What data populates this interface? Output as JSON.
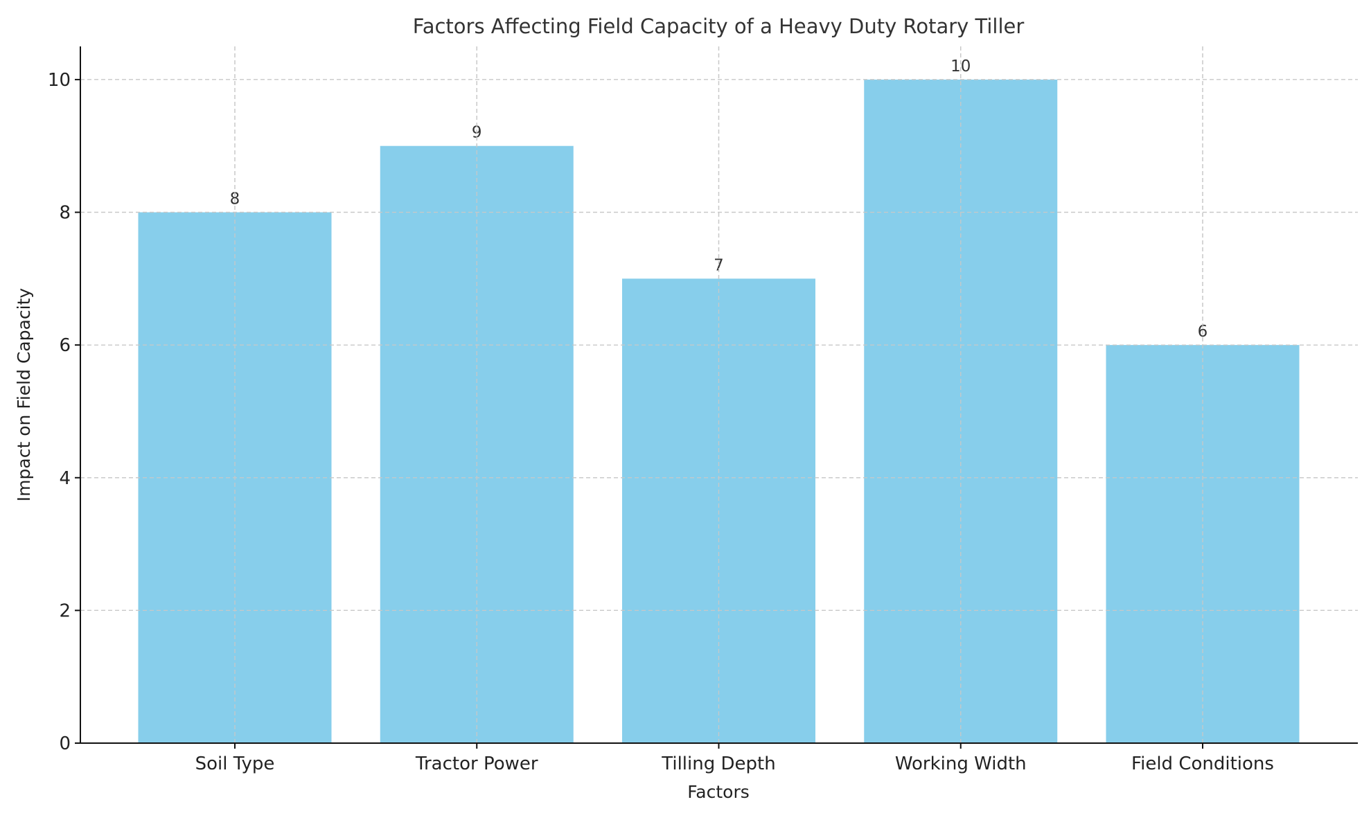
{
  "chart_data": {
    "type": "bar",
    "title": "Factors Affecting Field Capacity of a Heavy Duty Rotary Tiller",
    "xlabel": "Factors",
    "ylabel": "Impact on Field Capacity",
    "categories": [
      "Soil Type",
      "Tractor Power",
      "Tilling Depth",
      "Working Width",
      "Field Conditions"
    ],
    "values": [
      8,
      9,
      7,
      10,
      6
    ],
    "data_labels": [
      "8",
      "9",
      "7",
      "10",
      "6"
    ],
    "ylim": [
      0,
      10.5
    ],
    "yticks": [
      "0",
      "2",
      "4",
      "6",
      "8",
      "10"
    ],
    "grid": true,
    "bar_color": "#87CEEB"
  }
}
